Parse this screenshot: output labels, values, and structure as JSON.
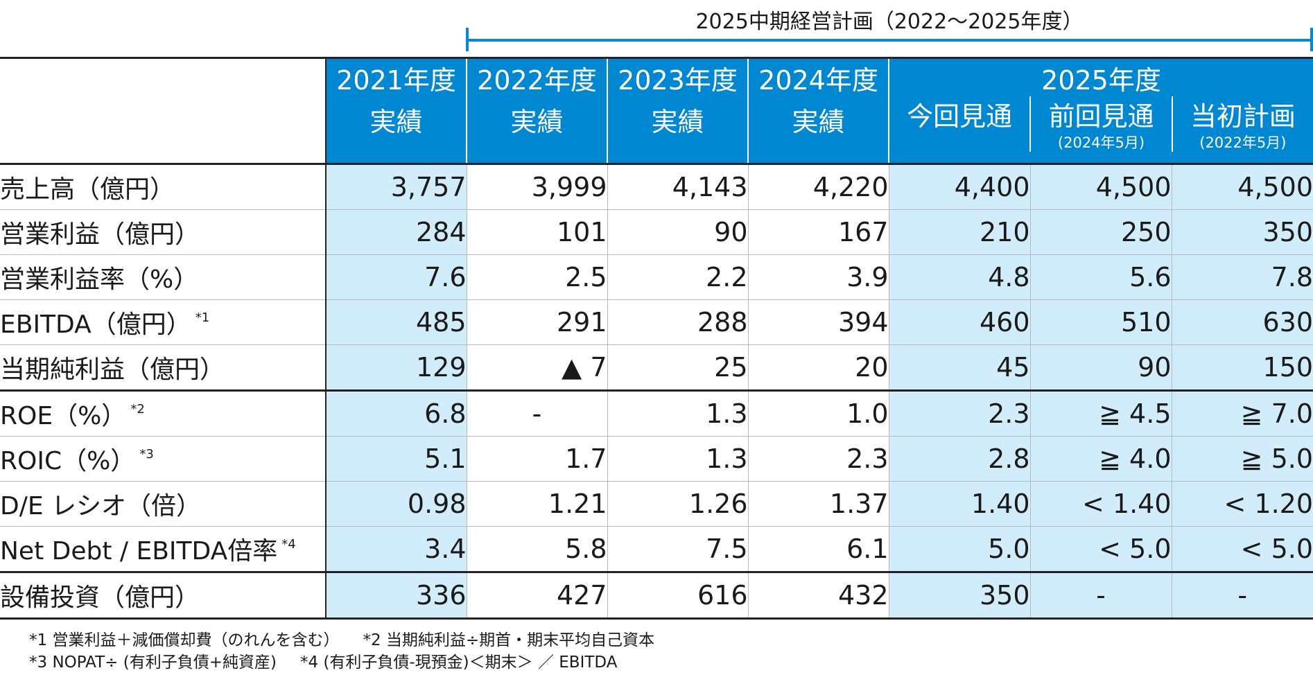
{
  "plan_caption": "2025中期経営計画（2022〜2025年度）",
  "header": {
    "fiscal_years": [
      {
        "year": "2021年度",
        "sub": "実績"
      },
      {
        "year": "2022年度",
        "sub": "実績"
      },
      {
        "year": "2023年度",
        "sub": "実績"
      },
      {
        "year": "2024年度",
        "sub": "実績"
      }
    ],
    "fy2025": {
      "year": "2025年度",
      "columns": [
        {
          "sub": "今回見通",
          "note": ""
        },
        {
          "sub": "前回見通",
          "note": "(2024年5月)"
        },
        {
          "sub": "当初計画",
          "note": "(2022年5月)"
        }
      ]
    }
  },
  "rows": [
    {
      "label": "売上高（億円）",
      "sup": "",
      "values": [
        "3,757",
        "3,999",
        "4,143",
        "4,220",
        "4,400",
        "4,500",
        "4,500"
      ]
    },
    {
      "label": "営業利益（億円）",
      "sup": "",
      "values": [
        "284",
        "101",
        "90",
        "167",
        "210",
        "250",
        "350"
      ]
    },
    {
      "label": "営業利益率（%）",
      "sup": "",
      "values": [
        "7.6",
        "2.5",
        "2.2",
        "3.9",
        "4.8",
        "5.6",
        "7.8"
      ]
    },
    {
      "label": "EBITDA（億円）",
      "sup": "*1",
      "values": [
        "485",
        "291",
        "288",
        "394",
        "460",
        "510",
        "630"
      ]
    },
    {
      "label": "当期純利益（億円）",
      "sup": "",
      "values": [
        "129",
        "▲ 7",
        "25",
        "20",
        "45",
        "90",
        "150"
      ]
    },
    {
      "label": "ROE（%）",
      "sup": "*2",
      "values": [
        "6.8",
        "-",
        "1.3",
        "1.0",
        "2.3",
        "≧ 4.5",
        "≧ 7.0"
      ]
    },
    {
      "label": "ROIC（%）",
      "sup": "*3",
      "values": [
        "5.1",
        "1.7",
        "1.3",
        "2.3",
        "2.8",
        "≧ 4.0",
        "≧ 5.0"
      ]
    },
    {
      "label": "D/E レシオ（倍）",
      "sup": "",
      "values": [
        "0.98",
        "1.21",
        "1.26",
        "1.37",
        "1.40",
        "< 1.40",
        "< 1.20"
      ]
    },
    {
      "label": "Net Debt / EBITDA倍率",
      "sup": "*4",
      "values": [
        "3.4",
        "5.8",
        "7.5",
        "6.1",
        "5.0",
        "< 5.0",
        "< 5.0"
      ]
    },
    {
      "label": "設備投資（億円）",
      "sup": "",
      "values": [
        "336",
        "427",
        "616",
        "432",
        "350",
        "-",
        "-"
      ]
    }
  ],
  "footnotes": [
    [
      "*1 営業利益＋減価償却費（のれんを含む）",
      "*2 当期純利益÷期首・期末平均自己資本"
    ],
    [
      "*3 NOPAT÷ (有利子負債+純資産)",
      "*4 (有利子負債-現預金)＜期末＞ ／ EBITDA"
    ]
  ]
}
